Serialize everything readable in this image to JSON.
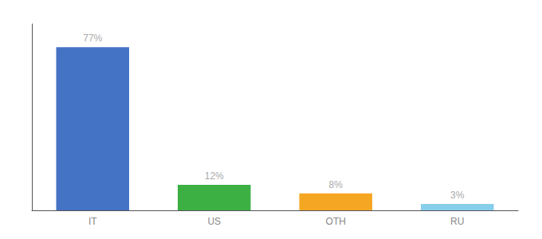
{
  "chart_data": {
    "type": "bar",
    "categories": [
      "IT",
      "US",
      "OTH",
      "RU"
    ],
    "values": [
      77,
      12,
      8,
      3
    ],
    "value_labels": [
      "77%",
      "12%",
      "8%",
      "3%"
    ],
    "colors": [
      "#4472c4",
      "#3cb043",
      "#f5a623",
      "#87ceeb"
    ],
    "ylim": [
      0,
      88
    ],
    "grid": false,
    "data_labels": true,
    "tick_labels": "x"
  }
}
